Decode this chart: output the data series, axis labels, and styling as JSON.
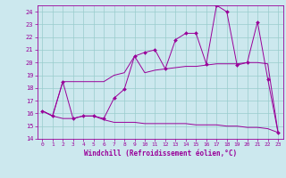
{
  "xlabel": "Windchill (Refroidissement éolien,°C)",
  "bg_color": "#cce8ee",
  "line_color": "#990099",
  "grid_color": "#99cccc",
  "xlim": [
    -0.5,
    23.5
  ],
  "ylim": [
    14,
    24.5
  ],
  "yticks": [
    14,
    15,
    16,
    17,
    18,
    19,
    20,
    21,
    22,
    23,
    24
  ],
  "xticks": [
    0,
    1,
    2,
    3,
    4,
    5,
    6,
    7,
    8,
    9,
    10,
    11,
    12,
    13,
    14,
    15,
    16,
    17,
    18,
    19,
    20,
    21,
    22,
    23
  ],
  "series1_x": [
    0,
    1,
    2,
    3,
    4,
    5,
    6,
    7,
    8,
    9,
    10,
    11,
    12,
    13,
    14,
    15,
    16,
    17,
    18,
    19,
    20,
    21,
    22,
    23
  ],
  "series1_y": [
    16.2,
    15.8,
    18.5,
    15.6,
    15.8,
    15.8,
    15.6,
    17.2,
    17.9,
    20.5,
    20.8,
    21.0,
    19.5,
    21.8,
    22.3,
    22.3,
    19.9,
    24.5,
    24.0,
    19.8,
    20.0,
    23.2,
    18.7,
    14.5
  ],
  "series2_x": [
    0,
    1,
    2,
    3,
    4,
    5,
    6,
    7,
    8,
    9,
    10,
    11,
    12,
    13,
    14,
    15,
    16,
    17,
    18,
    19,
    20,
    21,
    22,
    23
  ],
  "series2_y": [
    16.2,
    15.8,
    18.5,
    18.5,
    18.5,
    18.5,
    18.5,
    19.0,
    19.2,
    20.5,
    19.2,
    19.4,
    19.5,
    19.6,
    19.7,
    19.7,
    19.8,
    19.9,
    19.9,
    19.9,
    20.0,
    20.0,
    19.9,
    14.5
  ],
  "series3_x": [
    0,
    1,
    2,
    3,
    4,
    5,
    6,
    7,
    8,
    9,
    10,
    11,
    12,
    13,
    14,
    15,
    16,
    17,
    18,
    19,
    20,
    21,
    22,
    23
  ],
  "series3_y": [
    16.2,
    15.8,
    15.6,
    15.6,
    15.8,
    15.8,
    15.5,
    15.3,
    15.3,
    15.3,
    15.2,
    15.2,
    15.2,
    15.2,
    15.2,
    15.1,
    15.1,
    15.1,
    15.0,
    15.0,
    14.9,
    14.9,
    14.8,
    14.5
  ]
}
